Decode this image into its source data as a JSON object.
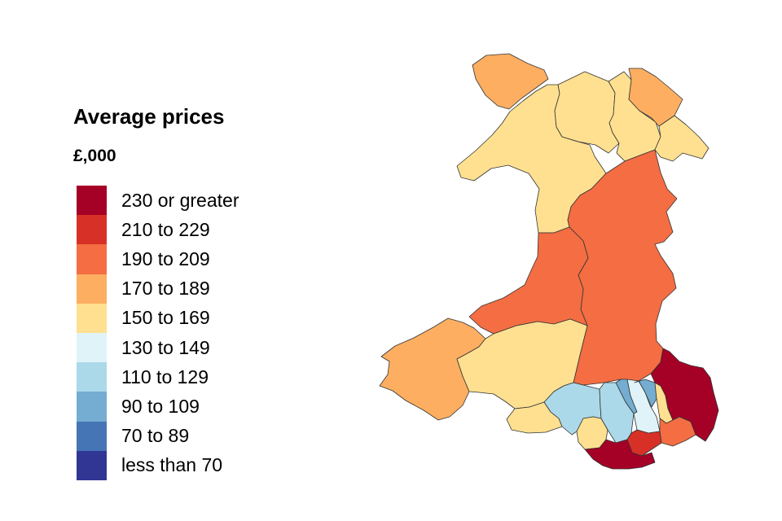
{
  "legend": {
    "title": "Average prices",
    "unit": "£,000",
    "bins": [
      {
        "label": "230 or greater",
        "color": "#a50026"
      },
      {
        "label": "210 to 229",
        "color": "#d73027"
      },
      {
        "label": "190 to 209",
        "color": "#f46d43"
      },
      {
        "label": "170 to 189",
        "color": "#fdae61"
      },
      {
        "label": "150 to 169",
        "color": "#fee090"
      },
      {
        "label": "130 to 149",
        "color": "#e0f3f8"
      },
      {
        "label": "110 to 129",
        "color": "#abd9e9"
      },
      {
        "label": "90 to 109",
        "color": "#74add1"
      },
      {
        "label": "70 to 89",
        "color": "#4575b4"
      },
      {
        "label": "less than 70",
        "color": "#313695"
      }
    ]
  },
  "regions": [
    {
      "id": "anglesey",
      "bin": 3
    },
    {
      "id": "gwynedd",
      "bin": 4
    },
    {
      "id": "conwy",
      "bin": 4
    },
    {
      "id": "denbighshire",
      "bin": 4
    },
    {
      "id": "flintshire",
      "bin": 3
    },
    {
      "id": "wrexham",
      "bin": 4
    },
    {
      "id": "powys",
      "bin": 2
    },
    {
      "id": "ceredigion",
      "bin": 2
    },
    {
      "id": "pembrokeshire",
      "bin": 3
    },
    {
      "id": "carmarthenshire",
      "bin": 4
    },
    {
      "id": "swansea",
      "bin": 4
    },
    {
      "id": "neath-port-talbot",
      "bin": 6
    },
    {
      "id": "bridgend",
      "bin": 4
    },
    {
      "id": "rhondda-cynon-taf",
      "bin": 6
    },
    {
      "id": "merthyr-tydfil",
      "bin": 7
    },
    {
      "id": "caerphilly",
      "bin": 5
    },
    {
      "id": "blaenau-gwent",
      "bin": 7
    },
    {
      "id": "torfaen",
      "bin": 4
    },
    {
      "id": "monmouthshire",
      "bin": 0
    },
    {
      "id": "newport",
      "bin": 2
    },
    {
      "id": "cardiff",
      "bin": 1
    },
    {
      "id": "vale-of-glamorgan",
      "bin": 0
    }
  ]
}
